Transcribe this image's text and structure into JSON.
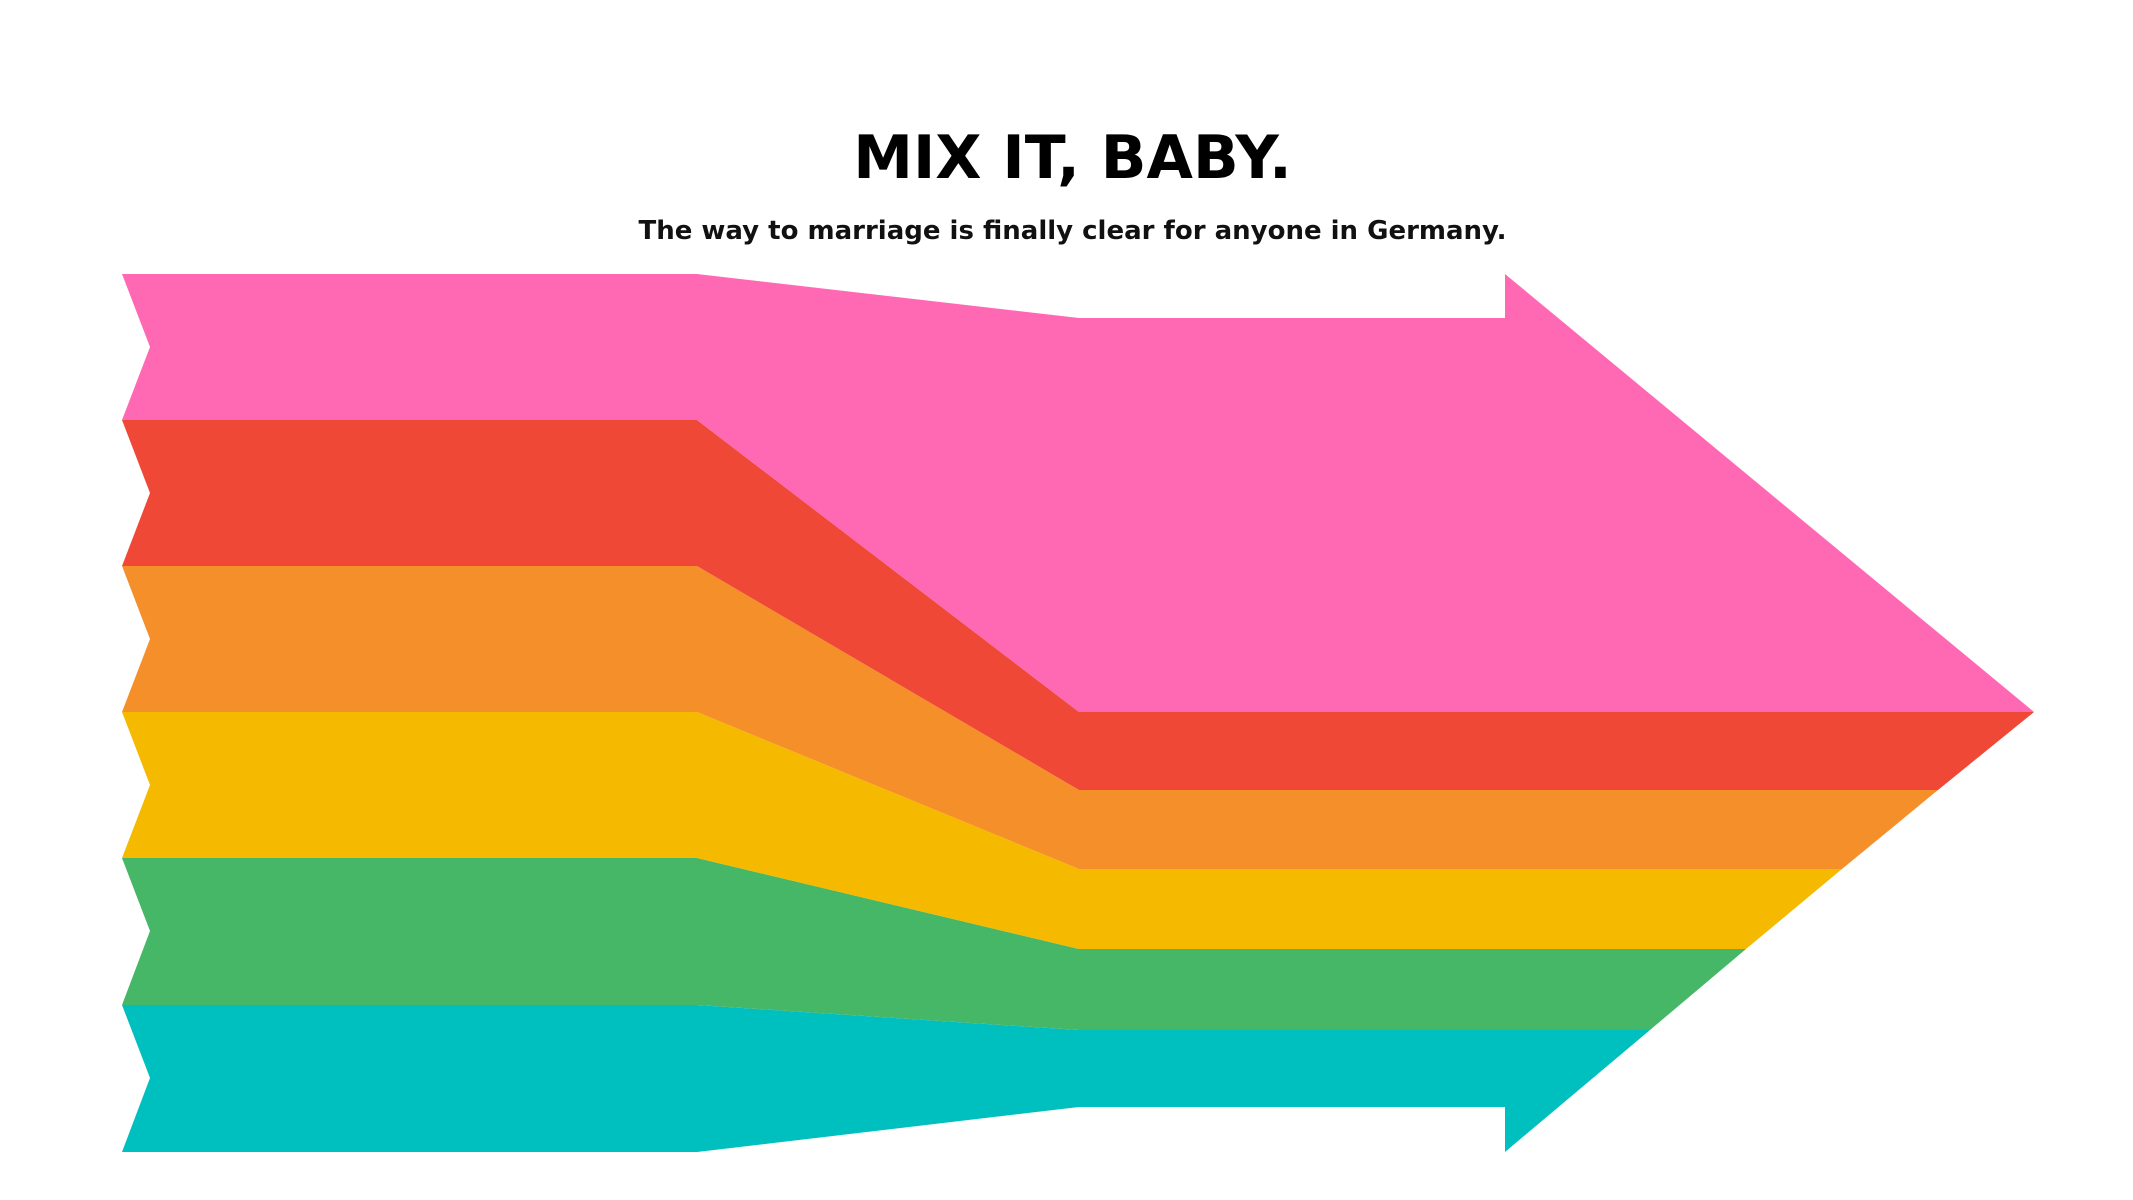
{
  "headline": "MIX IT, BABY.",
  "subheadline": "The way to marriage is finally clear for anyone in Germany.",
  "stripes": [
    {
      "name": "pink",
      "color": "#FF69B4"
    },
    {
      "name": "red",
      "color": "#EF4836"
    },
    {
      "name": "orange",
      "color": "#F58F29"
    },
    {
      "name": "yellow",
      "color": "#F5B900"
    },
    {
      "name": "green",
      "color": "#46B667"
    },
    {
      "name": "teal",
      "color": "#00BFBF"
    }
  ]
}
